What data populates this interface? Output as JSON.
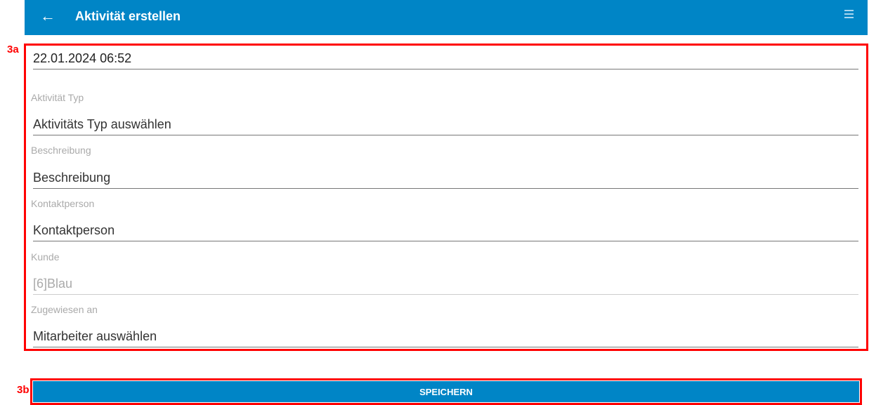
{
  "header": {
    "title": "Aktivität erstellen"
  },
  "annotations": {
    "form": "3a",
    "save": "3b"
  },
  "form": {
    "date": "22.01.2024 06:52",
    "fields": [
      {
        "label": "Aktivität Typ",
        "value": "Aktivitäts Typ auswählen"
      },
      {
        "label": "Beschreibung",
        "value": "Beschreibung"
      },
      {
        "label": "Kontaktperson",
        "value": "Kontaktperson"
      },
      {
        "label": "Kunde",
        "value": "[6]Blau"
      },
      {
        "label": "Zugewiesen an",
        "value": "Mitarbeiter auswählen"
      }
    ]
  },
  "save_label": "SPEICHERN"
}
